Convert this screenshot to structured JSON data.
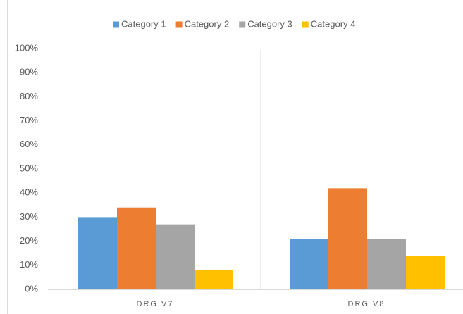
{
  "chart_data": {
    "type": "bar",
    "categories": [
      "DRG V7",
      "DRG V8"
    ],
    "series": [
      {
        "name": "Category 1",
        "color": "#5b9bd5",
        "values": [
          30,
          21
        ]
      },
      {
        "name": "Category 2",
        "color": "#ed7d31",
        "values": [
          34,
          42
        ]
      },
      {
        "name": "Category 3",
        "color": "#a5a5a5",
        "values": [
          27,
          21
        ]
      },
      {
        "name": "Category 4",
        "color": "#ffc000",
        "values": [
          8,
          14
        ]
      }
    ],
    "ylim": [
      0,
      100
    ],
    "yticks": [
      {
        "value": 0,
        "label": "0%"
      },
      {
        "value": 10,
        "label": "10%"
      },
      {
        "value": 20,
        "label": "20%"
      },
      {
        "value": 30,
        "label": "30%"
      },
      {
        "value": 40,
        "label": "40%"
      },
      {
        "value": 50,
        "label": "50%"
      },
      {
        "value": 60,
        "label": "60%"
      },
      {
        "value": 70,
        "label": "70%"
      },
      {
        "value": 80,
        "label": "80%"
      },
      {
        "value": 90,
        "label": "90%"
      },
      {
        "value": 100,
        "label": "100%"
      }
    ],
    "grid": false,
    "legend": "top"
  }
}
